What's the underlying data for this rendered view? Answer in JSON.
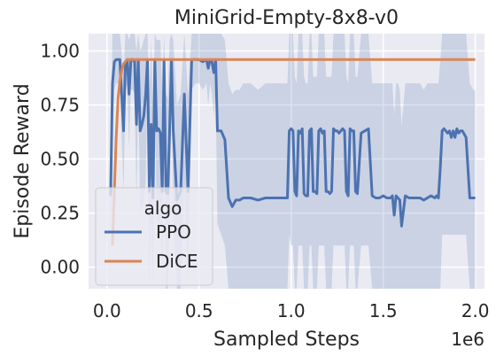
{
  "chart_data": {
    "type": "line",
    "title": "MiniGrid-Empty-8x8-v0",
    "xlabel": "Sampled Steps",
    "ylabel": "Episode Reward",
    "x_offset_text": "1e6",
    "xlim": [
      -0.1,
      2.05
    ],
    "ylim": [
      -0.1,
      1.08
    ],
    "xticks": [
      0.0,
      0.5,
      1.0,
      1.5,
      2.0
    ],
    "xtick_labels": [
      "0.0",
      "0.5",
      "1.0",
      "1.5",
      "2.0"
    ],
    "yticks": [
      0.0,
      0.25,
      0.5,
      0.75,
      1.0
    ],
    "ytick_labels": [
      "0.00",
      "0.25",
      "0.50",
      "0.75",
      "1.00"
    ],
    "grid": true,
    "legend": {
      "title": "algo",
      "placement": "lower-left",
      "entries": [
        "PPO",
        "DiCE"
      ]
    },
    "series": [
      {
        "name": "PPO",
        "color": "#4c72b0",
        "x": [
          0.02,
          0.03,
          0.04,
          0.05,
          0.07,
          0.09,
          0.1,
          0.11,
          0.12,
          0.13,
          0.14,
          0.15,
          0.16,
          0.17,
          0.18,
          0.19,
          0.2,
          0.21,
          0.22,
          0.23,
          0.24,
          0.25,
          0.26,
          0.27,
          0.28,
          0.29,
          0.3,
          0.31,
          0.32,
          0.33,
          0.34,
          0.35,
          0.36,
          0.38,
          0.4,
          0.42,
          0.44,
          0.46,
          0.48,
          0.5,
          0.52,
          0.54,
          0.55,
          0.56,
          0.57,
          0.58,
          0.59,
          0.6,
          0.62,
          0.64,
          0.66,
          0.68,
          0.7,
          0.72,
          0.74,
          0.78,
          0.82,
          0.86,
          0.9,
          0.94,
          0.96,
          0.98,
          0.99,
          1.0,
          1.01,
          1.02,
          1.03,
          1.04,
          1.05,
          1.06,
          1.07,
          1.08,
          1.09,
          1.1,
          1.11,
          1.12,
          1.13,
          1.14,
          1.15,
          1.16,
          1.17,
          1.18,
          1.19,
          1.2,
          1.21,
          1.22,
          1.23,
          1.24,
          1.25,
          1.26,
          1.27,
          1.28,
          1.29,
          1.3,
          1.31,
          1.32,
          1.33,
          1.34,
          1.35,
          1.36,
          1.38,
          1.4,
          1.42,
          1.44,
          1.46,
          1.48,
          1.5,
          1.52,
          1.54,
          1.55,
          1.56,
          1.57,
          1.58,
          1.59,
          1.6,
          1.62,
          1.64,
          1.66,
          1.68,
          1.7,
          1.72,
          1.74,
          1.76,
          1.78,
          1.79,
          1.8,
          1.81,
          1.82,
          1.83,
          1.84,
          1.85,
          1.86,
          1.87,
          1.88,
          1.89,
          1.9,
          1.91,
          1.92,
          1.93,
          1.95,
          1.97,
          1.99,
          2.0
        ],
        "values": [
          0.33,
          0.85,
          0.95,
          0.96,
          0.96,
          0.63,
          0.95,
          0.96,
          0.8,
          0.96,
          0.96,
          0.95,
          0.66,
          0.96,
          0.63,
          0.66,
          0.7,
          0.8,
          0.96,
          0.35,
          0.66,
          0.32,
          0.96,
          0.63,
          0.64,
          0.62,
          0.35,
          0.96,
          0.35,
          0.34,
          0.63,
          0.96,
          0.63,
          0.31,
          0.35,
          0.8,
          0.35,
          0.96,
          0.96,
          0.96,
          0.95,
          0.96,
          0.92,
          0.96,
          0.95,
          0.9,
          0.96,
          0.63,
          0.63,
          0.59,
          0.32,
          0.28,
          0.31,
          0.31,
          0.32,
          0.32,
          0.31,
          0.32,
          0.32,
          0.32,
          0.32,
          0.32,
          0.63,
          0.64,
          0.63,
          0.35,
          0.33,
          0.63,
          0.62,
          0.64,
          0.34,
          0.33,
          0.33,
          0.63,
          0.64,
          0.35,
          0.35,
          0.34,
          0.63,
          0.64,
          0.62,
          0.63,
          0.35,
          0.35,
          0.34,
          0.35,
          0.64,
          0.63,
          0.63,
          0.62,
          0.63,
          0.64,
          0.63,
          0.35,
          0.33,
          0.64,
          0.63,
          0.63,
          0.35,
          0.34,
          0.62,
          0.63,
          0.64,
          0.33,
          0.32,
          0.32,
          0.33,
          0.32,
          0.32,
          0.33,
          0.24,
          0.33,
          0.32,
          0.31,
          0.19,
          0.33,
          0.32,
          0.32,
          0.32,
          0.32,
          0.31,
          0.32,
          0.33,
          0.32,
          0.33,
          0.32,
          0.46,
          0.63,
          0.64,
          0.63,
          0.62,
          0.63,
          0.6,
          0.63,
          0.6,
          0.64,
          0.62,
          0.63,
          0.63,
          0.6,
          0.32,
          0.32,
          0.32
        ],
        "band_lower": [
          0.1,
          0.6,
          0.82,
          0.85,
          0.85,
          0.35,
          0.8,
          0.85,
          0.55,
          0.82,
          0.82,
          0.8,
          0.3,
          0.82,
          0.25,
          0.28,
          0.3,
          0.4,
          0.82,
          -0.1,
          0.25,
          -0.1,
          0.82,
          0.2,
          0.22,
          0.2,
          -0.1,
          0.82,
          -0.1,
          -0.1,
          0.25,
          0.82,
          0.25,
          -0.1,
          -0.1,
          0.4,
          -0.1,
          0.82,
          0.85,
          0.85,
          0.82,
          0.85,
          0.75,
          0.85,
          0.8,
          0.7,
          0.82,
          0.2,
          0.15,
          0.1,
          -0.1,
          -0.1,
          -0.1,
          -0.1,
          -0.1,
          -0.1,
          -0.1,
          -0.1,
          -0.1,
          -0.1,
          -0.1,
          -0.1,
          0.15,
          0.1,
          0.1,
          -0.1,
          -0.1,
          0.1,
          0.1,
          0.1,
          -0.1,
          -0.1,
          -0.1,
          0.1,
          0.1,
          -0.1,
          -0.1,
          -0.1,
          0.1,
          0.1,
          0.1,
          0.1,
          -0.1,
          -0.1,
          -0.1,
          -0.1,
          0.1,
          0.1,
          0.1,
          0.1,
          0.1,
          0.1,
          0.1,
          -0.1,
          -0.1,
          0.1,
          0.1,
          0.1,
          -0.1,
          -0.1,
          0.1,
          0.1,
          0.1,
          -0.1,
          -0.1,
          -0.1,
          -0.1,
          -0.1,
          -0.1,
          -0.1,
          -0.1,
          -0.1,
          -0.1,
          -0.1,
          -0.1,
          -0.1,
          -0.1,
          -0.1,
          -0.1,
          -0.1,
          -0.1,
          -0.1,
          -0.1,
          -0.1,
          -0.1,
          -0.1,
          -0.1,
          0.15,
          0.15,
          0.15,
          0.15,
          0.15,
          0.15,
          0.15,
          0.15,
          0.15,
          0.15,
          0.15,
          0.15,
          0.15,
          -0.1,
          -0.1,
          -0.1
        ],
        "band_upper": [
          0.55,
          1.08,
          1.08,
          1.08,
          1.08,
          0.9,
          1.08,
          1.08,
          1.05,
          1.08,
          1.08,
          1.08,
          1.0,
          1.08,
          1.0,
          1.02,
          1.05,
          1.08,
          1.08,
          0.8,
          1.05,
          0.75,
          1.08,
          1.05,
          1.05,
          1.05,
          0.8,
          1.08,
          0.8,
          0.78,
          1.05,
          1.08,
          1.05,
          0.75,
          0.8,
          1.08,
          0.8,
          1.08,
          1.08,
          1.08,
          1.08,
          1.08,
          1.08,
          1.08,
          1.08,
          1.08,
          1.08,
          1.08,
          1.08,
          1.05,
          0.85,
          0.8,
          0.82,
          0.82,
          0.85,
          0.85,
          0.82,
          0.85,
          0.85,
          0.85,
          0.85,
          0.85,
          1.08,
          1.08,
          1.08,
          0.88,
          0.85,
          1.08,
          1.08,
          1.08,
          0.88,
          0.85,
          0.85,
          1.08,
          1.08,
          0.88,
          0.88,
          0.88,
          1.08,
          1.08,
          1.08,
          1.08,
          0.88,
          0.88,
          0.88,
          0.88,
          1.08,
          1.08,
          1.08,
          1.08,
          1.08,
          1.08,
          1.08,
          0.88,
          0.85,
          1.08,
          1.08,
          1.08,
          0.88,
          0.88,
          1.08,
          1.08,
          1.08,
          0.85,
          0.85,
          0.85,
          0.85,
          0.85,
          0.85,
          0.85,
          0.7,
          0.85,
          0.85,
          0.82,
          0.65,
          0.85,
          0.85,
          0.85,
          0.85,
          0.85,
          0.82,
          0.85,
          0.85,
          0.85,
          0.85,
          0.85,
          0.95,
          1.08,
          1.08,
          1.08,
          1.08,
          1.08,
          1.08,
          1.08,
          1.08,
          1.08,
          1.08,
          1.08,
          1.08,
          1.08,
          0.85,
          0.82,
          0.82
        ]
      },
      {
        "name": "DiCE",
        "color": "#dd8452",
        "x": [
          0.03,
          0.05,
          0.06,
          0.07,
          0.08,
          0.09,
          0.1,
          0.11,
          0.12,
          0.15,
          0.3,
          0.6,
          1.0,
          1.5,
          2.0
        ],
        "values": [
          0.1,
          0.6,
          0.78,
          0.86,
          0.91,
          0.94,
          0.95,
          0.96,
          0.96,
          0.96,
          0.96,
          0.96,
          0.96,
          0.96,
          0.96
        ]
      }
    ]
  }
}
